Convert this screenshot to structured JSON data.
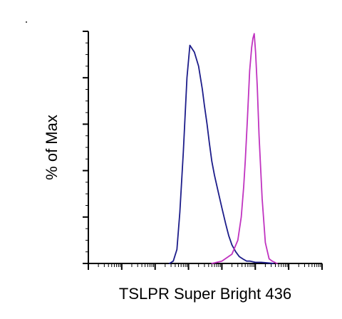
{
  "chart_data": {
    "type": "line",
    "title": "",
    "xlabel": "TSLPR Super Bright 436",
    "ylabel": "% of Max",
    "x_scale": "log",
    "xlim": [
      0.1,
      1000000
    ],
    "ylim": [
      0,
      100
    ],
    "tick_labels_shown": false,
    "legend": "none",
    "grid": false,
    "series": [
      {
        "color": "#1c1c8a",
        "x": [
          27,
          35,
          45,
          55,
          70,
          90,
          110,
          150,
          200,
          260,
          300,
          360,
          420,
          500,
          600,
          800,
          1000,
          1300,
          1600,
          2000,
          2600,
          3300,
          4200,
          5500,
          7000,
          10000,
          15000,
          25000,
          35000
        ],
        "y": [
          0,
          1,
          6,
          22,
          48,
          80,
          94,
          91,
          85,
          75,
          68,
          60,
          52,
          44,
          38,
          30,
          24,
          17,
          12,
          8,
          5,
          3,
          2,
          1,
          1,
          0.5,
          0.5,
          0.2,
          0
        ]
      },
      {
        "color": "#c033c0",
        "x": [
          500,
          1000,
          2000,
          3000,
          3800,
          4500,
          5000,
          5800,
          6800,
          7800,
          8500,
          9300,
          10200,
          11500,
          13000,
          16000,
          20000,
          26000,
          32000,
          45000
        ],
        "y": [
          0,
          1,
          4,
          10,
          20,
          33,
          44,
          62,
          83,
          93,
          97,
          99,
          91,
          76,
          55,
          28,
          9,
          2,
          1,
          0
        ]
      }
    ]
  }
}
